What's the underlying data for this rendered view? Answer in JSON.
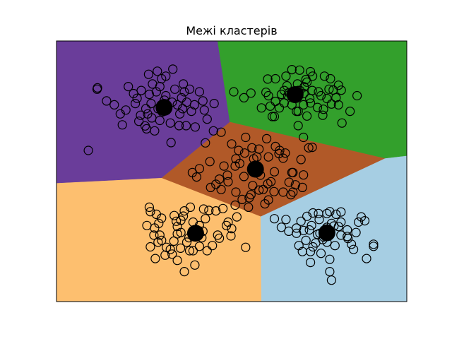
{
  "chart_data": {
    "type": "scatter",
    "title": "Межі кластерів",
    "xlabel": "",
    "ylabel": "",
    "xlim": [
      0,
      10
    ],
    "ylim": [
      0,
      10
    ],
    "grid": false,
    "ticks_visible": false,
    "region_colors": [
      "#fdbf6f",
      "#a6cee3",
      "#b15928",
      "#6a3d9a",
      "#33a02c"
    ],
    "regions": [
      {
        "name": "cluster-0",
        "color": "#fdbf6f",
        "polygon": [
          [
            0,
            0
          ],
          [
            5.85,
            0
          ],
          [
            5.83,
            3.27
          ],
          [
            3.0,
            4.75
          ],
          [
            0,
            4.55
          ]
        ]
      },
      {
        "name": "cluster-1",
        "color": "#a6cee3",
        "polygon": [
          [
            5.85,
            0
          ],
          [
            10,
            0
          ],
          [
            10,
            5.6
          ],
          [
            9.38,
            5.5
          ],
          [
            5.83,
            3.27
          ]
        ]
      },
      {
        "name": "cluster-2",
        "color": "#b15928",
        "polygon": [
          [
            3.0,
            4.75
          ],
          [
            5.83,
            3.27
          ],
          [
            9.38,
            5.5
          ],
          [
            5.1,
            6.85
          ],
          [
            4.95,
            6.9
          ]
        ]
      },
      {
        "name": "cluster-3",
        "color": "#6a3d9a",
        "polygon": [
          [
            0,
            4.55
          ],
          [
            3.0,
            4.75
          ],
          [
            4.95,
            6.9
          ],
          [
            4.6,
            10
          ],
          [
            0,
            10
          ]
        ]
      },
      {
        "name": "cluster-4",
        "color": "#33a02c",
        "polygon": [
          [
            4.6,
            10
          ],
          [
            10,
            10
          ],
          [
            10,
            5.6
          ],
          [
            9.38,
            5.5
          ],
          [
            5.1,
            6.85
          ],
          [
            4.95,
            6.9
          ]
        ]
      }
    ],
    "centroids": [
      {
        "x": 3.97,
        "y": 2.62
      },
      {
        "x": 7.72,
        "y": 2.64
      },
      {
        "x": 5.68,
        "y": 5.08
      },
      {
        "x": 3.07,
        "y": 7.45
      },
      {
        "x": 6.81,
        "y": 7.94
      }
    ],
    "series": [
      {
        "color": "#000000",
        "points": [
          [
            3.08,
            7.73
          ],
          [
            2.74,
            8.35
          ],
          [
            3.3,
            7.65
          ],
          [
            2.55,
            7.4
          ],
          [
            3.12,
            7.9
          ],
          [
            3.52,
            7.2
          ],
          [
            2.72,
            7.05
          ],
          [
            3.85,
            7.3
          ],
          [
            3.0,
            8.55
          ],
          [
            2.3,
            7.8
          ],
          [
            1.16,
            8.15
          ],
          [
            1.43,
            7.7
          ],
          [
            1.82,
            7.2
          ],
          [
            2.05,
            8.25
          ],
          [
            2.88,
            8.84
          ],
          [
            3.62,
            8.35
          ],
          [
            4.08,
            8.05
          ],
          [
            3.94,
            7.55
          ],
          [
            2.57,
            6.63
          ],
          [
            3.25,
            6.85
          ],
          [
            3.7,
            6.75
          ],
          [
            2.9,
            7.4
          ],
          [
            2.65,
            7.95
          ],
          [
            3.38,
            8.15
          ],
          [
            1.65,
            7.55
          ],
          [
            1.98,
            7.35
          ],
          [
            2.6,
            7.2
          ],
          [
            3.96,
            6.7
          ],
          [
            4.5,
            7.6
          ],
          [
            3.27,
            6.1
          ],
          [
            3.65,
            8.05
          ],
          [
            4.22,
            7.35
          ],
          [
            2.63,
            8.72
          ],
          [
            3.12,
            8.65
          ],
          [
            0.91,
            5.8
          ],
          [
            2.53,
            6.74
          ],
          [
            3.45,
            7.55
          ],
          [
            2.85,
            8.05
          ],
          [
            3.57,
            7.82
          ],
          [
            1.88,
            6.78
          ],
          [
            2.25,
            7.6
          ],
          [
            2.42,
            8.1
          ],
          [
            3.32,
            8.92
          ],
          [
            4.3,
            7.0
          ],
          [
            2.95,
            6.95
          ],
          [
            4.18,
            7.7
          ],
          [
            3.8,
            8.15
          ],
          [
            2.7,
            7.6
          ],
          [
            3.02,
            7.28
          ],
          [
            2.35,
            6.92
          ],
          [
            2.8,
            6.55
          ],
          [
            3.5,
            6.75
          ],
          [
            4.48,
            6.55
          ],
          [
            1.17,
            8.2
          ],
          [
            2.2,
            7.98
          ],
          [
            3.6,
            7.4
          ],
          [
            2.4,
            7.15
          ],
          [
            3.1,
            7.5
          ],
          [
            2.95,
            8.25
          ],
          [
            3.72,
            7.65
          ],
          [
            6.03,
            8.54
          ],
          [
            6.64,
            8.02
          ],
          [
            6.94,
            8.88
          ],
          [
            7.31,
            8.65
          ],
          [
            7.72,
            7.79
          ],
          [
            6.25,
            7.68
          ],
          [
            7.07,
            8.24
          ],
          [
            7.06,
            7.98
          ],
          [
            7.15,
            8.42
          ],
          [
            7.05,
            7.55
          ],
          [
            6.5,
            7.62
          ],
          [
            6.36,
            7.43
          ],
          [
            5.98,
            8.03
          ],
          [
            6.25,
            8.55
          ],
          [
            6.55,
            8.65
          ],
          [
            6.58,
            8.28
          ],
          [
            6.72,
            8.9
          ],
          [
            7.3,
            8.1
          ],
          [
            7.23,
            7.79
          ],
          [
            6.85,
            7.3
          ],
          [
            5.06,
            8.05
          ],
          [
            5.35,
            7.82
          ],
          [
            6.72,
            7.55
          ],
          [
            6.16,
            7.1
          ],
          [
            6.9,
            7.3
          ],
          [
            7.45,
            7.45
          ],
          [
            7.85,
            7.58
          ],
          [
            8.05,
            7.55
          ],
          [
            8.13,
            8.11
          ],
          [
            8.05,
            8.3
          ],
          [
            8.58,
            7.9
          ],
          [
            8.38,
            7.3
          ],
          [
            8.15,
            6.85
          ],
          [
            7.6,
            7.15
          ],
          [
            7.25,
            7.62
          ],
          [
            7.98,
            7.82
          ],
          [
            6.9,
            8.1
          ],
          [
            6.6,
            7.9
          ],
          [
            6.42,
            7.95
          ],
          [
            6.1,
            7.5
          ],
          [
            7.9,
            8.12
          ],
          [
            7.82,
            8.55
          ],
          [
            7.65,
            8.65
          ],
          [
            7.25,
            8.82
          ],
          [
            6.88,
            8.35
          ],
          [
            6.05,
            7.9
          ],
          [
            5.55,
            8.0
          ],
          [
            5.85,
            7.43
          ],
          [
            6.5,
            8.1
          ],
          [
            7.48,
            8.05
          ],
          [
            7.78,
            8.15
          ],
          [
            7.55,
            7.9
          ],
          [
            7.12,
            8.52
          ],
          [
            6.22,
            7.1
          ],
          [
            6.9,
            6.75
          ],
          [
            7.15,
            7.12
          ],
          [
            7.62,
            7.38
          ],
          [
            6.95,
            8.1
          ],
          [
            5.37,
            5.7
          ],
          [
            5.72,
            5.55
          ],
          [
            5.63,
            5.48
          ],
          [
            5.12,
            5.48
          ],
          [
            5.23,
            5.3
          ],
          [
            6.37,
            5.8
          ],
          [
            6.47,
            5.5
          ],
          [
            6.22,
            4.98
          ],
          [
            5.7,
            5.01
          ],
          [
            5.9,
            4.3
          ],
          [
            6.03,
            4.52
          ],
          [
            6.05,
            3.9
          ],
          [
            6.21,
            4.22
          ],
          [
            6.47,
            4.2
          ],
          [
            6.69,
            4.1
          ],
          [
            6.75,
            4.2
          ],
          [
            6.64,
            4.58
          ],
          [
            6.82,
            4.48
          ],
          [
            6.72,
            4.95
          ],
          [
            7.02,
            4.38
          ],
          [
            7.05,
            4.86
          ],
          [
            6.98,
            5.45
          ],
          [
            6.53,
            5.7
          ],
          [
            6.35,
            5.68
          ],
          [
            5.35,
            4.8
          ],
          [
            5.1,
            5.2
          ],
          [
            4.78,
            5.2
          ],
          [
            4.38,
            5.37
          ],
          [
            3.88,
            4.95
          ],
          [
            4.08,
            5.1
          ],
          [
            4.65,
            4.7
          ],
          [
            4.9,
            4.6
          ],
          [
            4.88,
            4.85
          ],
          [
            4.55,
            4.5
          ],
          [
            4.4,
            4.38
          ],
          [
            4.0,
            4.78
          ],
          [
            4.7,
            4.3
          ],
          [
            5.3,
            3.92
          ],
          [
            5.5,
            3.98
          ],
          [
            5.55,
            4.1
          ],
          [
            5.78,
            4.28
          ],
          [
            5.95,
            3.75
          ],
          [
            5.48,
            3.62
          ],
          [
            4.75,
            3.57
          ],
          [
            5.1,
            3.7
          ],
          [
            5.12,
            4.2
          ],
          [
            5.6,
            4.45
          ],
          [
            5.82,
            4.85
          ],
          [
            6.12,
            4.6
          ],
          [
            6.75,
            4.95
          ],
          [
            5.58,
            5.9
          ],
          [
            5.2,
            5.8
          ],
          [
            5.78,
            5.85
          ],
          [
            6.05,
            5.55
          ],
          [
            7.3,
            5.92
          ],
          [
            5.4,
            6.3
          ],
          [
            4.7,
            6.5
          ],
          [
            4.25,
            6.09
          ],
          [
            5.0,
            6.05
          ],
          [
            6.0,
            6.25
          ],
          [
            6.25,
            5.95
          ],
          [
            7.05,
            6.3
          ],
          [
            7.2,
            5.9
          ],
          [
            2.68,
            3.45
          ],
          [
            2.58,
            2.92
          ],
          [
            2.78,
            2.55
          ],
          [
            2.92,
            3.0
          ],
          [
            3.36,
            3.3
          ],
          [
            3.9,
            3.05
          ],
          [
            3.0,
            2.35
          ],
          [
            3.14,
            2.08
          ],
          [
            3.35,
            2.32
          ],
          [
            3.45,
            2.6
          ],
          [
            3.72,
            2.28
          ],
          [
            3.54,
            2.05
          ],
          [
            4.18,
            2.7
          ],
          [
            4.65,
            2.43
          ],
          [
            4.45,
            2.15
          ],
          [
            4.3,
            1.95
          ],
          [
            3.9,
            1.95
          ],
          [
            3.78,
            2.45
          ],
          [
            4.08,
            2.92
          ],
          [
            4.25,
            3.18
          ],
          [
            3.62,
            3.28
          ],
          [
            4.55,
            3.48
          ],
          [
            4.35,
            3.5
          ],
          [
            4.85,
            2.92
          ],
          [
            5.0,
            2.8
          ],
          [
            4.98,
            2.52
          ],
          [
            5.4,
            2.08
          ],
          [
            4.2,
            3.55
          ],
          [
            3.45,
            2.88
          ],
          [
            2.95,
            2.55
          ],
          [
            2.8,
            2.82
          ],
          [
            2.85,
            3.35
          ],
          [
            2.68,
            2.1
          ],
          [
            3.1,
            1.78
          ],
          [
            3.25,
            2.0
          ],
          [
            3.8,
            1.95
          ],
          [
            3.95,
            1.4
          ],
          [
            3.65,
            1.15
          ],
          [
            3.3,
            1.82
          ],
          [
            2.65,
            3.62
          ],
          [
            3.0,
            3.2
          ],
          [
            3.42,
            3.08
          ],
          [
            3.65,
            3.48
          ],
          [
            3.82,
            3.62
          ],
          [
            3.55,
            3.12
          ],
          [
            3.55,
            2.65
          ],
          [
            4.08,
            2.12
          ],
          [
            4.6,
            2.55
          ],
          [
            4.9,
            3.05
          ],
          [
            5.15,
            3.25
          ],
          [
            2.82,
            1.65
          ],
          [
            3.45,
            1.58
          ],
          [
            4.15,
            2.45
          ],
          [
            2.9,
            2.28
          ],
          [
            6.63,
            2.7
          ],
          [
            7.32,
            3.4
          ],
          [
            7.15,
            3.27
          ],
          [
            7.5,
            3.15
          ],
          [
            7.8,
            3.45
          ],
          [
            8.12,
            3.44
          ],
          [
            8.12,
            3.05
          ],
          [
            8.7,
            3.25
          ],
          [
            8.8,
            3.1
          ],
          [
            8.55,
            2.65
          ],
          [
            8.3,
            2.75
          ],
          [
            8.32,
            2.42
          ],
          [
            8.42,
            2.2
          ],
          [
            8.12,
            2.55
          ],
          [
            7.95,
            2.15
          ],
          [
            7.8,
            1.62
          ],
          [
            7.55,
            1.85
          ],
          [
            7.32,
            2.1
          ],
          [
            7.12,
            2.35
          ],
          [
            6.92,
            2.15
          ],
          [
            7.62,
            2.48
          ],
          [
            7.22,
            2.75
          ],
          [
            6.85,
            2.82
          ],
          [
            7.05,
            2.73
          ],
          [
            7.45,
            2.58
          ],
          [
            7.72,
            2.28
          ],
          [
            7.92,
            2.9
          ],
          [
            8.05,
            2.88
          ],
          [
            8.62,
            3.05
          ],
          [
            7.98,
            3.35
          ],
          [
            6.22,
            3.18
          ],
          [
            6.42,
            2.85
          ],
          [
            6.55,
            3.15
          ],
          [
            6.98,
            3.08
          ],
          [
            7.72,
            3.38
          ],
          [
            7.85,
            3.0
          ],
          [
            7.6,
            2.38
          ],
          [
            8.3,
            2.5
          ],
          [
            8.48,
            2.0
          ],
          [
            8.85,
            1.65
          ],
          [
            9.05,
            2.12
          ],
          [
            9.05,
            2.2
          ],
          [
            7.72,
            2.85
          ],
          [
            7.4,
            2.25
          ],
          [
            7.28,
            2.92
          ],
          [
            7.25,
            1.92
          ],
          [
            7.25,
            1.5
          ],
          [
            7.8,
            1.15
          ],
          [
            7.85,
            0.82
          ],
          [
            7.48,
            3.38
          ],
          [
            7.52,
            2.62
          ],
          [
            6.85,
            2.62
          ],
          [
            7.02,
            1.92
          ]
        ]
      }
    ]
  }
}
